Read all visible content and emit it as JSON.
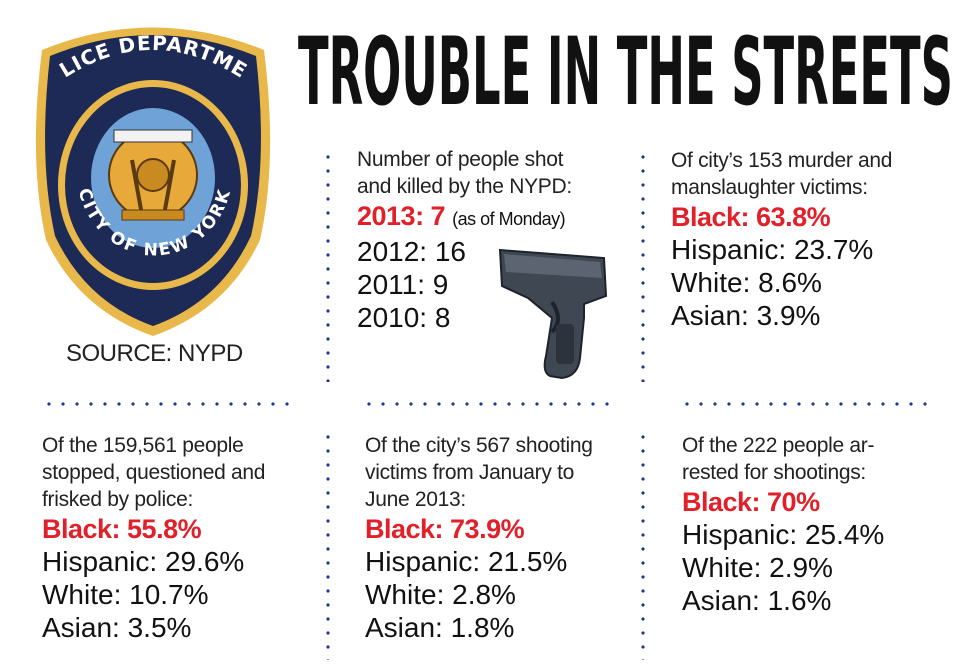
{
  "title": "TROUBLE IN THE STREETS",
  "patch": {
    "top_text": "POLICE DEPARTMENT",
    "ring_text": "CITY OF NEW YORK"
  },
  "source": "SOURCE: NYPD",
  "shootings_by_nypd": {
    "intro_line1": "Number of people shot",
    "intro_line2": "and killed by the NYPD:",
    "highlight": "2013: 7",
    "highlight_note": "(as of Monday)",
    "years": [
      "2012: 16",
      "2011: 9",
      "2010: 8"
    ]
  },
  "murder_victims": {
    "intro_line1": "Of city’s 153 murder and",
    "intro_line2": "manslaughter victims:",
    "highlight": "Black: 63.8%",
    "stats": [
      "Hispanic: 23.7%",
      "White: 8.6%",
      "Asian: 3.9%"
    ]
  },
  "stop_and_frisk": {
    "intro_line1": "Of the 159,561 people",
    "intro_line2": "stopped, questioned and",
    "intro_line3": "frisked by police:",
    "highlight": "Black: 55.8%",
    "stats": [
      "Hispanic: 29.6%",
      "White: 10.7%",
      "Asian: 3.5%"
    ]
  },
  "shooting_victims": {
    "intro_line1": "Of the city’s 567 shooting",
    "intro_line2": "victims from January to",
    "intro_line3": "June 2013:",
    "highlight": "Black: 73.9%",
    "stats": [
      "Hispanic: 21.5%",
      "White: 2.8%",
      "Asian: 1.8%"
    ]
  },
  "arrested": {
    "intro_line1": "Of the 222 people ar-",
    "intro_line2": "rested for shootings:",
    "highlight": "Black: 70%",
    "stats": [
      "Hispanic: 25.4%",
      "White: 2.9%",
      "Asian: 1.6%"
    ]
  },
  "colors": {
    "highlight": "#e2202a",
    "dots": "#1b3c8c",
    "patch_navy": "#1d2a55",
    "patch_gold": "#e8b84a"
  },
  "icons": [
    "nypd-patch-icon",
    "handgun-icon"
  ]
}
